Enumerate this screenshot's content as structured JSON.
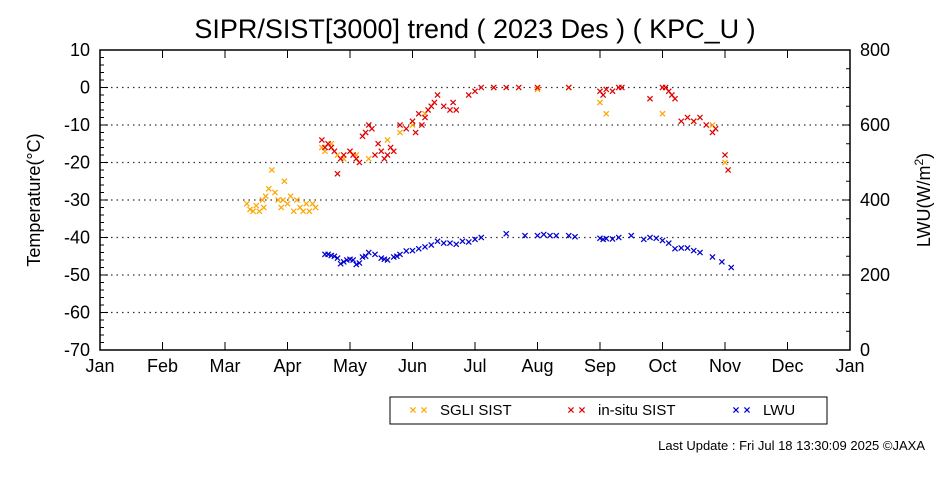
{
  "chart_data": {
    "type": "scatter",
    "title": "SIPR/SIST[3000] trend ( 2023 Des ) ( KPC_U )",
    "ylabel": "Temperature(°C)",
    "y2label": "LWU(W/m",
    "y2label_sup": "2",
    "y2label_end": ")",
    "ylim": [
      -70,
      10
    ],
    "y2lim": [
      0,
      800
    ],
    "yticks": [
      "10",
      "0",
      "-10",
      "-20",
      "-30",
      "-40",
      "-50",
      "-60",
      "-70"
    ],
    "y2ticks": [
      "800",
      "600",
      "400",
      "200",
      "0"
    ],
    "xticks": [
      "Jan",
      "Feb",
      "Mar",
      "Apr",
      "May",
      "Jun",
      "Jul",
      "Aug",
      "Sep",
      "Oct",
      "Nov",
      "Dec",
      "Jan"
    ],
    "grid": "dotted horizontal",
    "legend_position": "bottom",
    "series": [
      {
        "name": "SGLI SIST",
        "color": "#FFA500",
        "axis": "left",
        "x": [
          2.35,
          2.4,
          2.45,
          2.5,
          2.55,
          2.6,
          2.62,
          2.65,
          2.7,
          2.75,
          2.8,
          2.85,
          2.9,
          2.93,
          2.95,
          3.0,
          3.05,
          3.1,
          3.15,
          3.2,
          3.25,
          3.3,
          3.35,
          3.4,
          3.45,
          3.55,
          3.6,
          3.7,
          3.8,
          3.9,
          4.0,
          4.1,
          4.3,
          4.6,
          4.8,
          5.0,
          5.2,
          6.3,
          7.0,
          7.5,
          8.0,
          8.1,
          9.0,
          9.5,
          9.8,
          10.0
        ],
        "y": [
          -31,
          -32.5,
          -33,
          -31.5,
          -33,
          -30,
          -32,
          -29,
          -27,
          -22,
          -28,
          -30,
          -32,
          -30,
          -25,
          -31,
          -29,
          -33,
          -30,
          -32,
          -33,
          -31,
          -33,
          -31,
          -32,
          -16,
          -17,
          -15,
          -18,
          -19,
          -17,
          -18,
          -19,
          -14,
          -12,
          -10,
          -7,
          0,
          -0.5,
          0,
          -4,
          -7,
          -7,
          -9,
          -10,
          -20
        ],
        "markers": "x"
      },
      {
        "name": "in-situ SIST",
        "color": "#E00000",
        "axis": "left",
        "x": [
          3.55,
          3.6,
          3.65,
          3.7,
          3.75,
          3.8,
          3.85,
          3.9,
          4.0,
          4.05,
          4.1,
          4.15,
          4.2,
          4.25,
          4.3,
          4.35,
          4.4,
          4.45,
          4.5,
          4.55,
          4.6,
          4.65,
          4.7,
          4.8,
          4.9,
          5.0,
          5.05,
          5.1,
          5.15,
          5.2,
          5.25,
          5.3,
          5.35,
          5.4,
          5.5,
          5.6,
          5.65,
          5.7,
          5.9,
          6.0,
          6.1,
          6.3,
          6.5,
          6.7,
          7.0,
          7.5,
          8.0,
          8.05,
          8.1,
          8.2,
          8.3,
          8.35,
          8.8,
          9.0,
          9.05,
          9.1,
          9.15,
          9.2,
          9.3,
          9.4,
          9.5,
          9.6,
          9.7,
          9.8,
          9.85,
          10.0,
          10.05
        ],
        "y": [
          -14,
          -16,
          -15,
          -16,
          -17,
          -23,
          -19,
          -18,
          -17,
          -18,
          -19,
          -20,
          -13,
          -12,
          -10,
          -11,
          -18,
          -15,
          -17,
          -19,
          -18,
          -16,
          -17,
          -10,
          -11,
          -9,
          -12,
          -7,
          -10,
          -8,
          -6,
          -5,
          -4,
          -2,
          -5,
          -6,
          -4,
          -6,
          -2,
          -1,
          0,
          0,
          0,
          0,
          0,
          0,
          -1,
          -2,
          -0.5,
          -1,
          0,
          0,
          -3,
          0,
          0,
          -1,
          -2,
          -3,
          -9,
          -8,
          -9,
          -8,
          -10,
          -12,
          -11,
          -18,
          -22
        ],
        "markers": "x"
      },
      {
        "name": "LWU",
        "color": "#0000D0",
        "axis": "right",
        "x": [
          3.6,
          3.65,
          3.7,
          3.75,
          3.8,
          3.85,
          3.9,
          3.95,
          4.0,
          4.05,
          4.1,
          4.15,
          4.2,
          4.25,
          4.3,
          4.4,
          4.5,
          4.55,
          4.6,
          4.7,
          4.75,
          4.8,
          4.9,
          5.0,
          5.1,
          5.2,
          5.3,
          5.4,
          5.5,
          5.6,
          5.7,
          5.8,
          5.9,
          6.0,
          6.1,
          6.5,
          6.8,
          7.0,
          7.1,
          7.2,
          7.3,
          7.5,
          7.6,
          8.0,
          8.05,
          8.1,
          8.2,
          8.3,
          8.5,
          8.7,
          8.8,
          8.9,
          9.0,
          9.1,
          9.2,
          9.3,
          9.4,
          9.5,
          9.6,
          9.8,
          9.95,
          10.1
        ],
        "y": [
          255,
          255,
          252,
          250,
          245,
          230,
          235,
          240,
          242,
          240,
          228,
          232,
          248,
          250,
          260,
          255,
          245,
          242,
          240,
          248,
          250,
          255,
          264,
          265,
          270,
          275,
          280,
          290,
          285,
          285,
          282,
          290,
          288,
          295,
          300,
          310,
          305,
          305,
          308,
          305,
          305,
          305,
          302,
          298,
          295,
          297,
          296,
          300,
          305,
          295,
          300,
          298,
          292,
          285,
          270,
          272,
          272,
          265,
          260,
          248,
          235,
          220
        ],
        "markers": "x"
      }
    ]
  },
  "footer": {
    "last_update": "Last Update : Fri Jul 18 13:30:09 2025  ©JAXA"
  }
}
